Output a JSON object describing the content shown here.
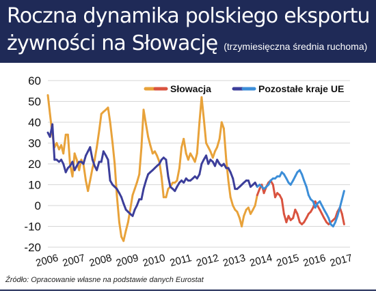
{
  "title_line1": "Roczna dynamika polskiego eksportu",
  "title_line2": "żywności na Słowację",
  "subtitle": "(trzymiesięczna średnia ruchoma)",
  "source": "Źródło: Opracowanie własne na podstawie danych Eurostat",
  "colors": {
    "header_bg": "#1f2a57",
    "slovakia_early": "#e8a23a",
    "slovakia_late": "#d9533f",
    "others_early": "#3c3e9a",
    "others_late": "#3c8ed8",
    "grid": "#d6d6d6"
  },
  "chart_data": {
    "type": "line",
    "ylim": [
      -20,
      60
    ],
    "yticks": [
      60,
      50,
      40,
      30,
      20,
      10,
      0,
      -10,
      -20
    ],
    "xlim": [
      2006,
      2017.3
    ],
    "xticks": [
      "2006",
      "2007",
      "2008",
      "2009",
      "2010",
      "2011",
      "2012",
      "2013",
      "2014",
      "2015",
      "2016",
      "2017"
    ],
    "grid": true,
    "legend": "top",
    "series": [
      {
        "name": "Słowacja",
        "x": [
          2006.0,
          2006.08,
          2006.17,
          2006.25,
          2006.33,
          2006.42,
          2006.5,
          2006.58,
          2006.67,
          2006.75,
          2006.83,
          2006.92,
          2007.0,
          2007.08,
          2007.17,
          2007.25,
          2007.33,
          2007.42,
          2007.5,
          2007.58,
          2007.67,
          2007.75,
          2007.83,
          2007.92,
          2008.0,
          2008.08,
          2008.17,
          2008.25,
          2008.33,
          2008.42,
          2008.5,
          2008.58,
          2008.67,
          2008.75,
          2008.83,
          2008.92,
          2009.0,
          2009.08,
          2009.17,
          2009.25,
          2009.33,
          2009.42,
          2009.5,
          2009.58,
          2009.67,
          2009.75,
          2009.83,
          2009.92,
          2010.0,
          2010.08,
          2010.17,
          2010.25,
          2010.33,
          2010.42,
          2010.5,
          2010.58,
          2010.67,
          2010.75,
          2010.83,
          2010.92,
          2011.0,
          2011.08,
          2011.17,
          2011.25,
          2011.33,
          2011.42,
          2011.5,
          2011.58,
          2011.67,
          2011.75,
          2011.83,
          2011.92,
          2012.0,
          2012.08,
          2012.17,
          2012.25,
          2012.33,
          2012.42,
          2012.5,
          2012.58,
          2012.67,
          2012.75,
          2012.83,
          2012.92,
          2013.0,
          2013.08,
          2013.17,
          2013.25,
          2013.33,
          2013.42,
          2013.5,
          2013.58,
          2013.67,
          2013.75,
          2013.83,
          2013.92,
          2014.0,
          2014.08,
          2014.17,
          2014.25,
          2014.33,
          2014.42,
          2014.5,
          2014.58,
          2014.67,
          2014.75,
          2014.83,
          2014.92,
          2015.0,
          2015.08,
          2015.17,
          2015.25,
          2015.33,
          2015.42,
          2015.5,
          2015.58,
          2015.67,
          2015.75,
          2015.83,
          2015.92,
          2016.0,
          2016.08,
          2016.17,
          2016.25,
          2016.33,
          2016.42,
          2016.5,
          2016.58,
          2016.67,
          2016.75,
          2016.83,
          2016.92,
          2017.0,
          2017.08
        ],
        "values": [
          53,
          44,
          34,
          28,
          30,
          27,
          29,
          25,
          34,
          34,
          20,
          14,
          25,
          22,
          17,
          22,
          20,
          12,
          7,
          12,
          18,
          22,
          28,
          36,
          44,
          45,
          46,
          47,
          40,
          30,
          20,
          5,
          -8,
          -15,
          -17,
          -12,
          -8,
          -2,
          5,
          8,
          11,
          15,
          28,
          46,
          39,
          33,
          29,
          25,
          26,
          24,
          21,
          14,
          4,
          4,
          8,
          9,
          11,
          11,
          12,
          18,
          28,
          32,
          25,
          22,
          25,
          23,
          21,
          25,
          40,
          52,
          42,
          30,
          28,
          26,
          23,
          26,
          28,
          32,
          40,
          37,
          22,
          12,
          4,
          0,
          -2,
          -3,
          -6,
          -10,
          -5,
          -2,
          -1,
          -4,
          -2,
          0,
          5,
          8,
          10,
          6,
          9,
          11,
          12,
          10,
          4,
          6,
          5,
          3,
          -4,
          -8,
          -5,
          -7,
          -6,
          -2,
          -4,
          -8,
          -9,
          -8,
          -6,
          -4,
          -3,
          -1,
          2,
          0,
          -2,
          -4,
          -6,
          -8,
          -9,
          -8,
          -7,
          -6,
          -3,
          -1,
          -4,
          -9
        ]
      },
      {
        "name": "Pozostałe kraje UE",
        "x": [
          2006.0,
          2006.08,
          2006.17,
          2006.25,
          2006.33,
          2006.42,
          2006.5,
          2006.58,
          2006.67,
          2006.75,
          2006.83,
          2006.92,
          2007.0,
          2007.08,
          2007.17,
          2007.25,
          2007.33,
          2007.42,
          2007.5,
          2007.58,
          2007.67,
          2007.75,
          2007.83,
          2007.92,
          2008.0,
          2008.08,
          2008.17,
          2008.25,
          2008.33,
          2008.42,
          2008.5,
          2008.58,
          2008.67,
          2008.75,
          2008.83,
          2008.92,
          2009.0,
          2009.08,
          2009.17,
          2009.25,
          2009.33,
          2009.42,
          2009.5,
          2009.58,
          2009.67,
          2009.75,
          2009.83,
          2009.92,
          2010.0,
          2010.08,
          2010.17,
          2010.25,
          2010.33,
          2010.42,
          2010.5,
          2010.58,
          2010.67,
          2010.75,
          2010.83,
          2010.92,
          2011.0,
          2011.08,
          2011.17,
          2011.25,
          2011.33,
          2011.42,
          2011.5,
          2011.58,
          2011.67,
          2011.75,
          2011.83,
          2011.92,
          2012.0,
          2012.08,
          2012.17,
          2012.25,
          2012.33,
          2012.42,
          2012.5,
          2012.58,
          2012.67,
          2012.75,
          2012.83,
          2012.92,
          2013.0,
          2013.08,
          2013.17,
          2013.25,
          2013.33,
          2013.42,
          2013.5,
          2013.58,
          2013.67,
          2013.75,
          2013.83,
          2013.92,
          2014.0,
          2014.08,
          2014.17,
          2014.25,
          2014.33,
          2014.42,
          2014.5,
          2014.58,
          2014.67,
          2014.75,
          2014.83,
          2014.92,
          2015.0,
          2015.08,
          2015.17,
          2015.25,
          2015.33,
          2015.42,
          2015.5,
          2015.58,
          2015.67,
          2015.75,
          2015.83,
          2015.92,
          2016.0,
          2016.08,
          2016.17,
          2016.25,
          2016.33,
          2016.42,
          2016.5,
          2016.58,
          2016.67,
          2016.75,
          2016.83,
          2016.92,
          2017.0,
          2017.08
        ],
        "values": [
          35,
          33,
          39,
          22,
          22,
          21,
          22,
          20,
          16,
          18,
          19,
          21,
          17,
          19,
          21,
          21,
          20,
          24,
          26,
          28,
          22,
          19,
          17,
          21,
          21,
          26,
          24,
          22,
          12,
          10,
          9,
          8,
          6,
          4,
          1,
          -2,
          -3,
          -4,
          -5,
          -2,
          0,
          3,
          3,
          8,
          12,
          15,
          16,
          17,
          18,
          19,
          20,
          22,
          23,
          22,
          14,
          9,
          8,
          7,
          9,
          11,
          12,
          11,
          13,
          12,
          12,
          13,
          14,
          13,
          15,
          20,
          22,
          24,
          20,
          22,
          21,
          19,
          22,
          20,
          19,
          20,
          18,
          18,
          16,
          13,
          8,
          8,
          9,
          10,
          11,
          12,
          12,
          9,
          10,
          11,
          9,
          10,
          9,
          8,
          9,
          10,
          12,
          13,
          13,
          14,
          14,
          16,
          15,
          13,
          11,
          10,
          12,
          14,
          16,
          17,
          15,
          12,
          9,
          5,
          3,
          2,
          -1,
          1,
          2,
          0,
          -2,
          -4,
          -6,
          -9,
          -10,
          -8,
          -5,
          -1,
          3,
          7
        ]
      }
    ]
  }
}
